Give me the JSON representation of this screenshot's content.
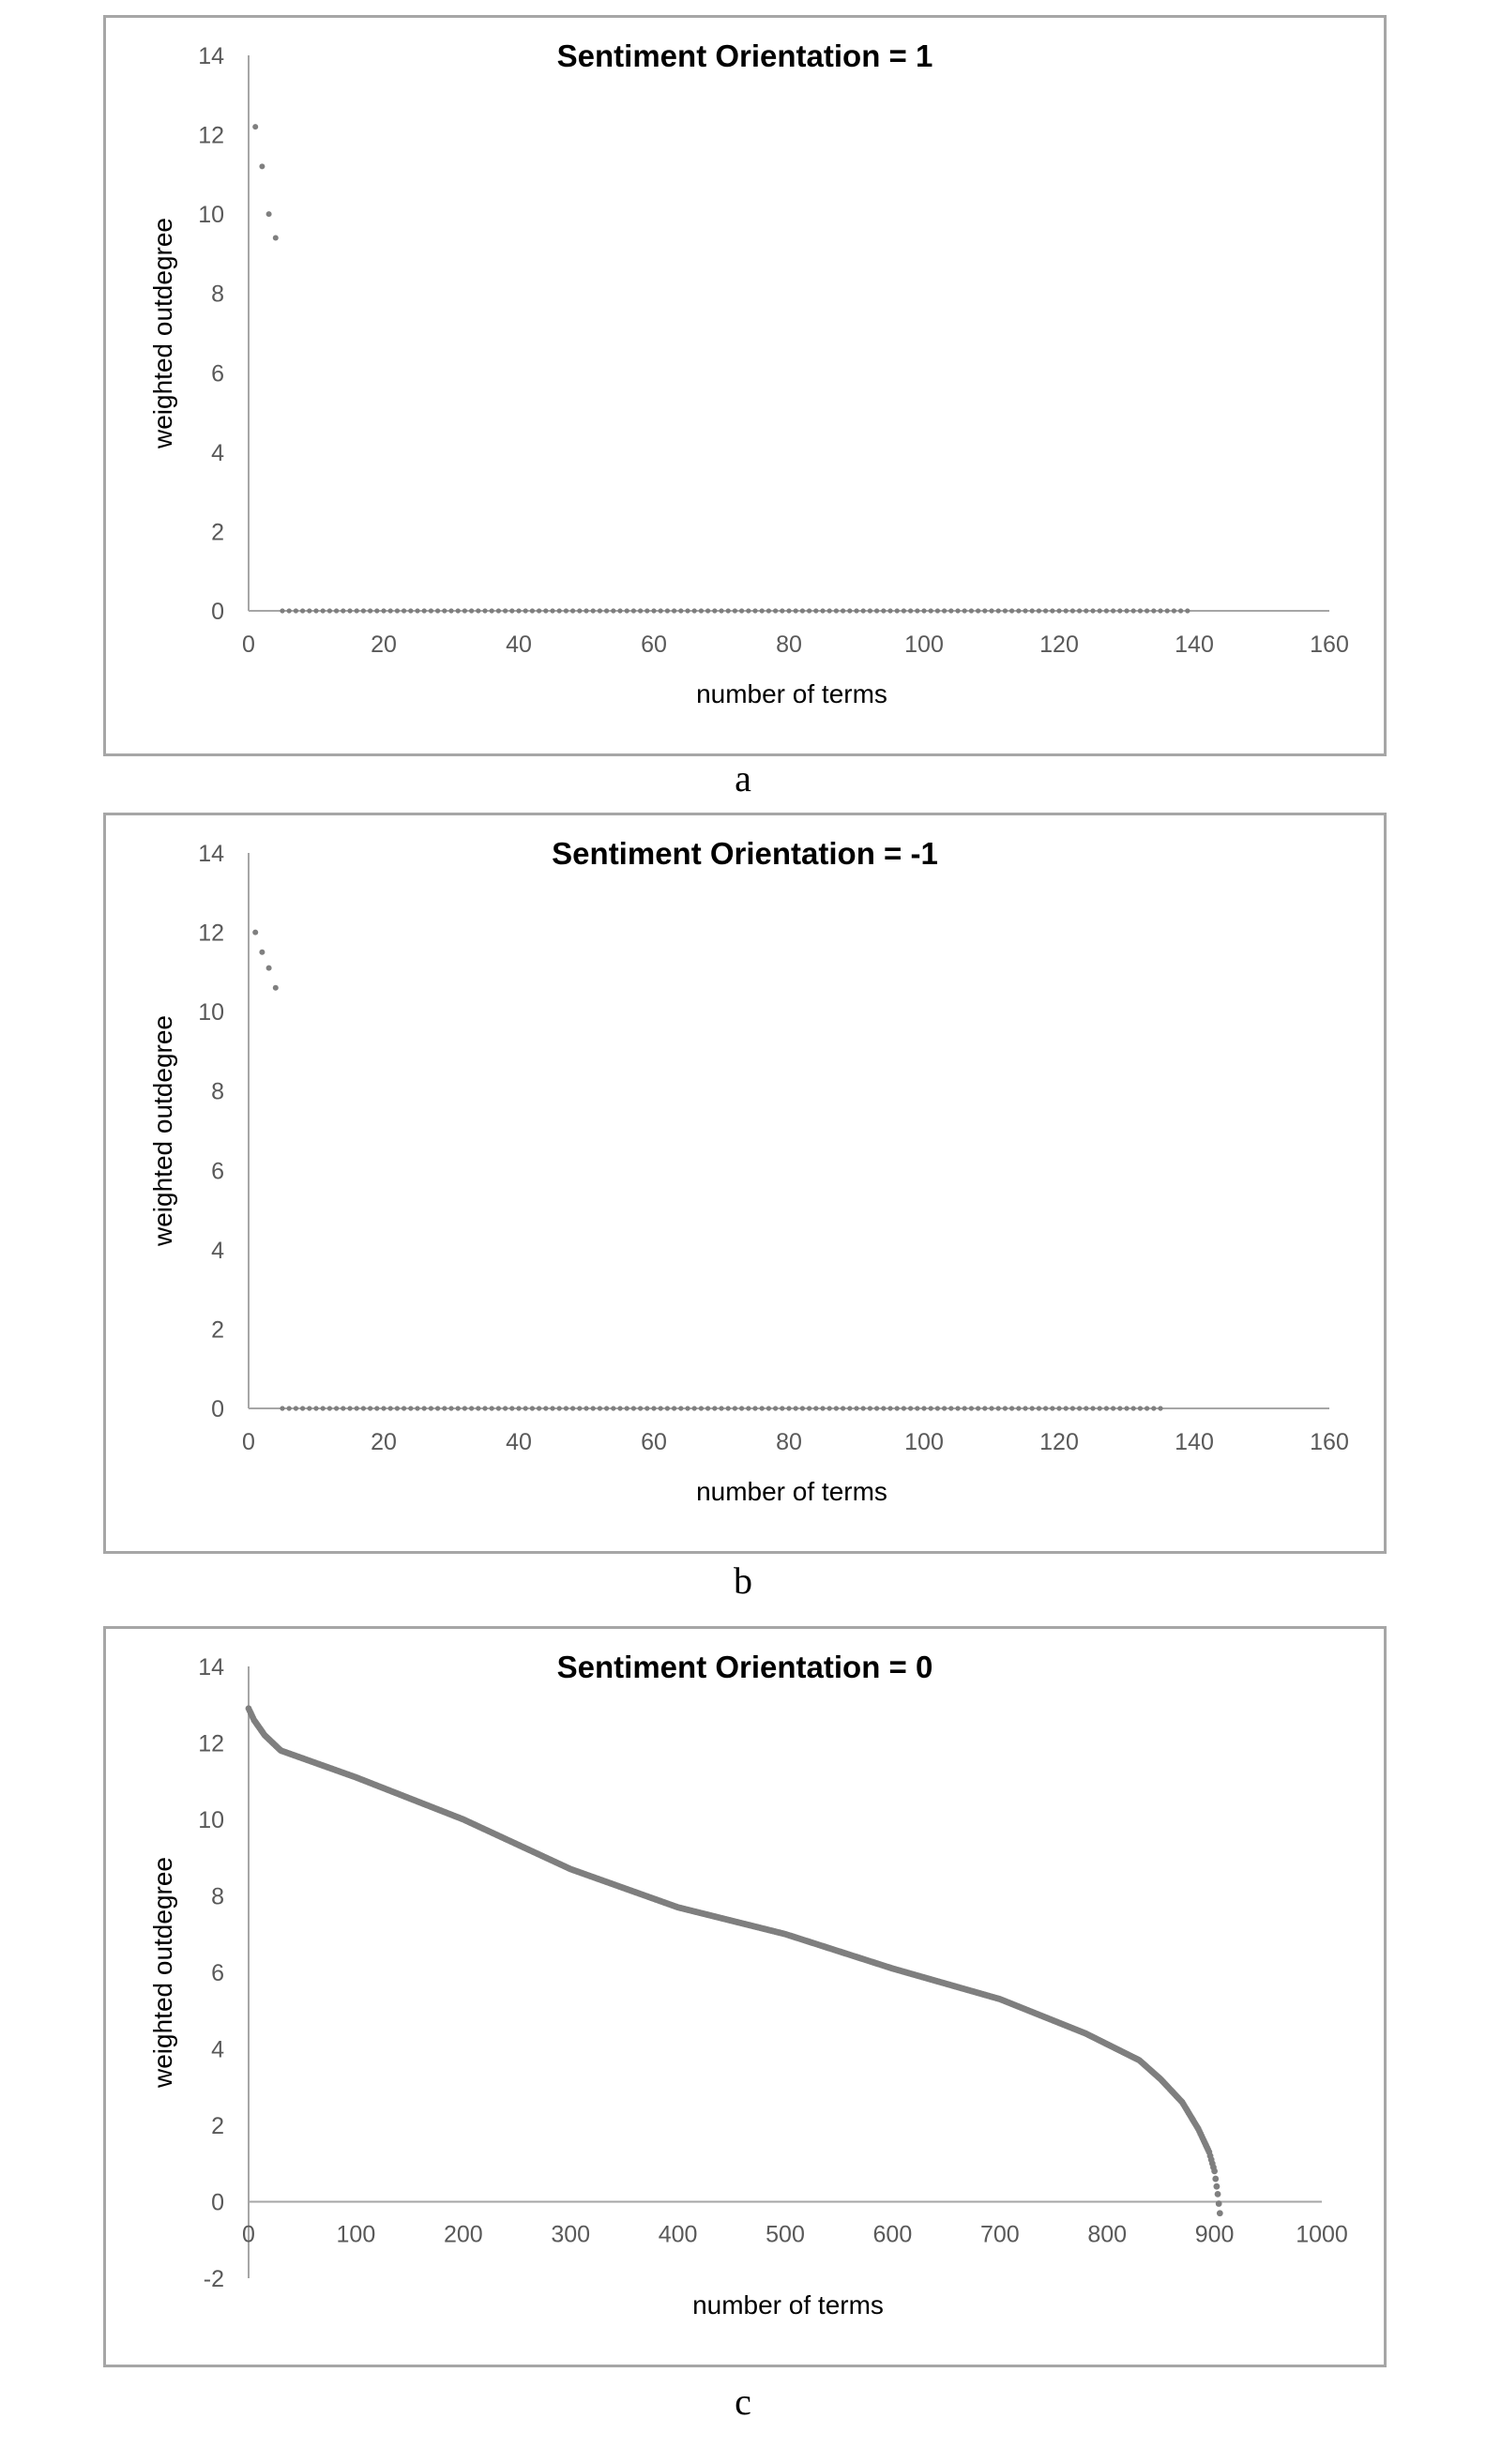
{
  "chart_data": [
    {
      "type": "scatter",
      "title": "Sentiment Orientation = 1",
      "xlabel": "number of terms",
      "ylabel": "weighted outdegree",
      "xlim": [
        0,
        160
      ],
      "ylim": [
        0,
        14
      ],
      "xticks": [
        "0",
        "20",
        "40",
        "60",
        "80",
        "100",
        "120",
        "140",
        "160"
      ],
      "yticks": [
        "0",
        "2",
        "4",
        "6",
        "8",
        "10",
        "12",
        "14"
      ],
      "grid": false,
      "legend": "none",
      "marker_color": "#7f7f7f",
      "series": [
        {
          "points_head": [
            [
              1,
              12.2
            ],
            [
              2,
              11.2
            ],
            [
              3,
              10.0
            ],
            [
              4,
              9.4
            ]
          ],
          "tail_x_range": [
            5,
            139
          ],
          "tail_y": 0
        }
      ],
      "caption": "a"
    },
    {
      "type": "scatter",
      "title": "Sentiment Orientation = -1",
      "xlabel": "number of terms",
      "ylabel": "weighted outdegree",
      "xlim": [
        0,
        160
      ],
      "ylim": [
        0,
        14
      ],
      "xticks": [
        "0",
        "20",
        "40",
        "60",
        "80",
        "100",
        "120",
        "140",
        "160"
      ],
      "yticks": [
        "0",
        "2",
        "4",
        "6",
        "8",
        "10",
        "12",
        "14"
      ],
      "grid": false,
      "legend": "none",
      "marker_color": "#7f7f7f",
      "series": [
        {
          "points_head": [
            [
              1,
              12.0
            ],
            [
              2,
              11.5
            ],
            [
              3,
              11.1
            ],
            [
              4,
              10.6
            ]
          ],
          "tail_x_range": [
            5,
            135
          ],
          "tail_y": 0
        }
      ],
      "caption": "b"
    },
    {
      "type": "scatter",
      "title": "Sentiment Orientation = 0",
      "xlabel": "number of terms",
      "ylabel": "weighted outdegree",
      "xlim": [
        0,
        1000
      ],
      "ylim": [
        -2,
        14
      ],
      "xticks": [
        "0",
        "100",
        "200",
        "300",
        "400",
        "500",
        "600",
        "700",
        "800",
        "900",
        "1000"
      ],
      "yticks": [
        "-2",
        "0",
        "2",
        "4",
        "6",
        "8",
        "10",
        "12",
        "14"
      ],
      "grid": false,
      "legend": "none",
      "marker_color": "#7f7f7f",
      "series": [
        {
          "curve_anchors": [
            [
              0,
              12.9
            ],
            [
              5,
              12.6
            ],
            [
              15,
              12.2
            ],
            [
              30,
              11.8
            ],
            [
              100,
              11.1
            ],
            [
              200,
              10.0
            ],
            [
              300,
              8.7
            ],
            [
              400,
              7.7
            ],
            [
              500,
              7.0
            ],
            [
              600,
              6.1
            ],
            [
              700,
              5.3
            ],
            [
              780,
              4.4
            ],
            [
              830,
              3.7
            ],
            [
              850,
              3.2
            ],
            [
              870,
              2.6
            ],
            [
              885,
              1.9
            ],
            [
              895,
              1.3
            ],
            [
              900,
              0.8
            ],
            [
              903,
              0.2
            ],
            [
              905,
              -0.3
            ]
          ],
          "n_points": 906
        }
      ],
      "caption": "c"
    }
  ]
}
